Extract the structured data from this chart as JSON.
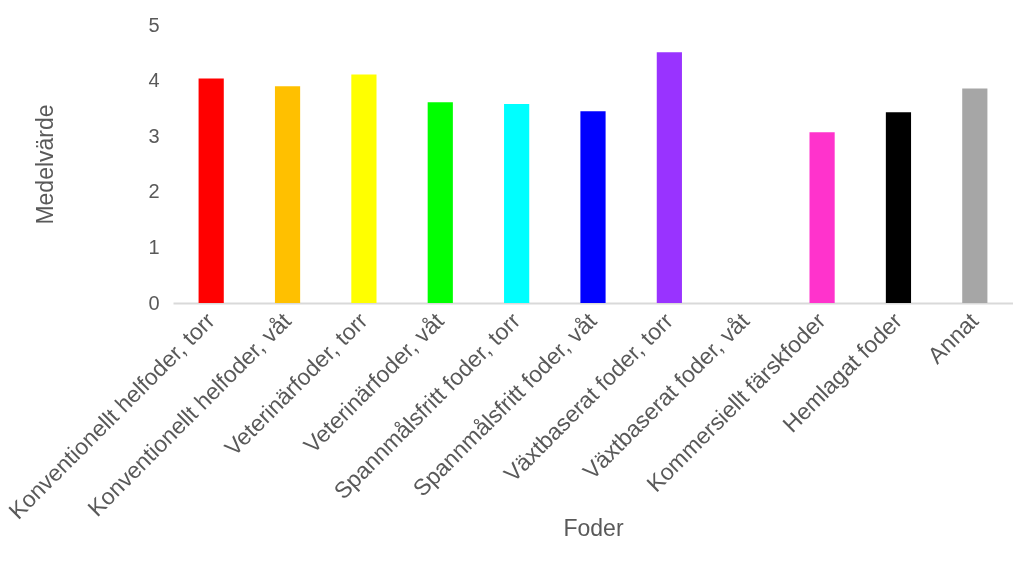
{
  "chart_data": {
    "type": "bar",
    "xlabel": "Foder",
    "ylabel": "Medelvärde",
    "categories": [
      "Konventionellt helfoder, torr",
      "Konventionellt helfoder, våt",
      "Veterinärfoder, torr",
      "Veterinärfoder, våt",
      "Spannmålsfritt foder, torr",
      "Spannmålsfritt foder, våt",
      "Växtbaserat foder, torr",
      "Växtbaserat foder, våt",
      "Kommersiellt färskfoder",
      "Hemlagat foder",
      "Annat"
    ],
    "values": [
      4.04,
      3.9,
      4.11,
      3.61,
      3.58,
      3.45,
      4.51,
      null,
      3.07,
      3.43,
      3.86
    ],
    "colors": [
      "#ff0000",
      "#ffc000",
      "#ffff00",
      "#00ff00",
      "#00ffff",
      "#0000ff",
      "#9933ff",
      null,
      "#ff33cc",
      "#000000",
      "#a6a6a6"
    ],
    "ylim": [
      0,
      5
    ],
    "yticks": [
      0,
      1,
      2,
      3,
      4,
      5
    ]
  }
}
